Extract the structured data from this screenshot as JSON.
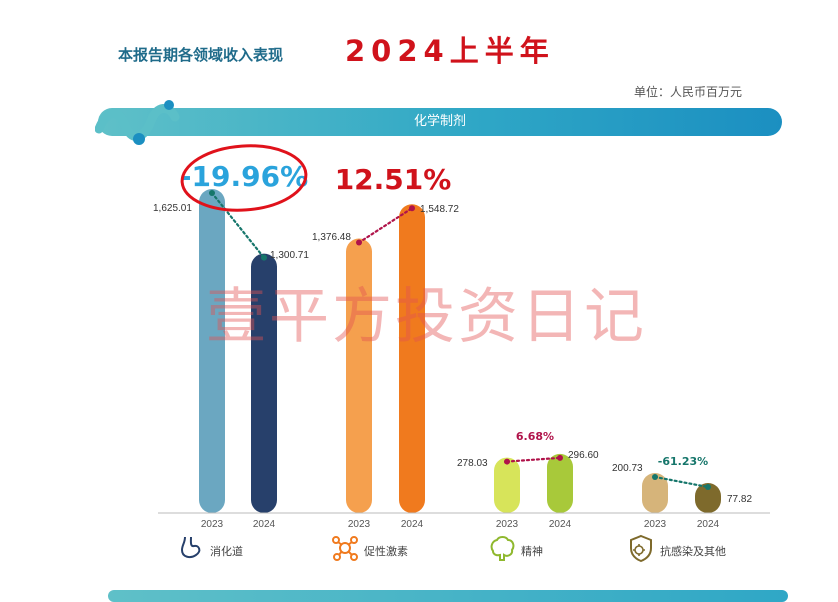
{
  "header": {
    "title": "本报告期各领域收入表现",
    "period": "2024上半年",
    "unit": "单位：人民币百万元",
    "section": "化学制剂"
  },
  "watermark": "壹平方投资日记",
  "colors": {
    "digestive_2023": "#6ba7c1",
    "digestive_2024": "#27406b",
    "hormone_2023": "#f5a04e",
    "hormone_2024": "#f07a1e",
    "mental_2023": "#d7e45a",
    "mental_2024": "#a8c93a",
    "anti_2023": "#d6b47a",
    "anti_2024": "#7e6a2c",
    "up": "#b0134a",
    "down": "#16766b",
    "annotation_red": "#d0121b",
    "annotation_blue": "#2aa3dc"
  },
  "chart_data": {
    "type": "bar",
    "categories": [
      "消化道",
      "促性激素",
      "精神",
      "抗感染及其他"
    ],
    "x": [
      "2023",
      "2024"
    ],
    "series": [
      {
        "name": "2023",
        "values": [
          1625.01,
          1376.48,
          278.03,
          200.73
        ]
      },
      {
        "name": "2024",
        "values": [
          1300.71,
          1548.72,
          296.6,
          77.82
        ]
      }
    ],
    "value_labels": {
      "2023": [
        "1,625.01",
        "1,376.48",
        "278.03",
        "200.73"
      ],
      "2024": [
        "1,300.71",
        "1,548.72",
        "296.60",
        "77.82"
      ]
    },
    "changes": [
      "-19.96%",
      "12.51%",
      "6.68%",
      "-61.23%"
    ],
    "category_icons": [
      "stomach-icon",
      "molecule-icon",
      "brain-icon",
      "virus-shield-icon"
    ],
    "ylim": [
      0,
      1700
    ],
    "grid": false,
    "legend": "none"
  }
}
